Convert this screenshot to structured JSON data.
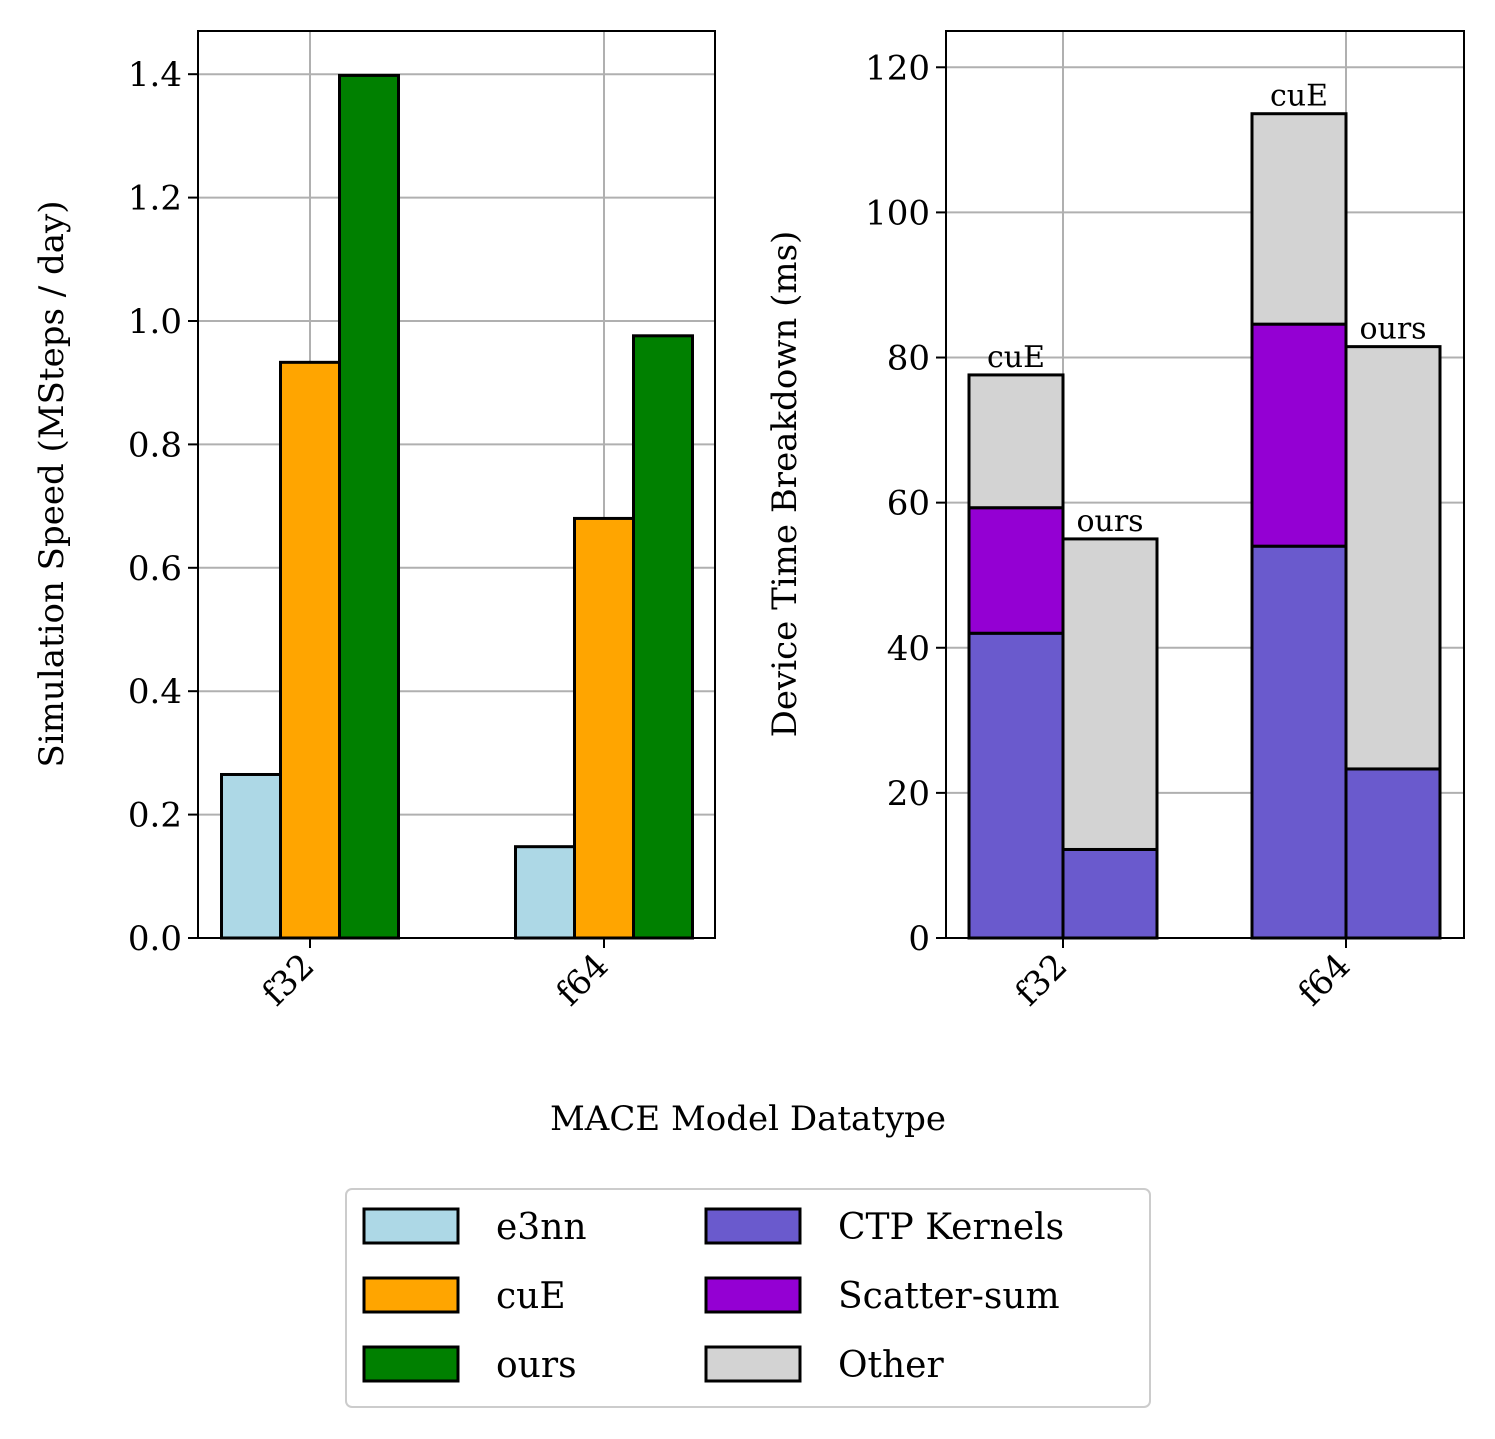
{
  "figure": {
    "shared_xlabel": "MACE Model Datatype"
  },
  "chart_data": [
    {
      "type": "bar",
      "categories": [
        "f32",
        "f64"
      ],
      "series": [
        {
          "name": "e3nn",
          "values": [
            0.265,
            0.148
          ],
          "color": "#add8e6"
        },
        {
          "name": "cuE",
          "values": [
            0.933,
            0.68
          ],
          "color": "#ffa500"
        },
        {
          "name": "ours",
          "values": [
            1.398,
            0.976
          ],
          "color": "#008000"
        }
      ],
      "ylabel": "Simulation Speed (MSteps / day)",
      "ylim": [
        0,
        1.47
      ],
      "yticks": [
        "0.0",
        "0.2",
        "0.4",
        "0.6",
        "0.8",
        "1.0",
        "1.2",
        "1.4"
      ],
      "grid": true
    },
    {
      "type": "bar",
      "stacked": true,
      "categories": [
        "f32",
        "f64"
      ],
      "groups": [
        "cuE",
        "ours"
      ],
      "components": [
        {
          "name": "CTP Kernels",
          "color": "#6a5acd",
          "cuE": [
            42,
            54
          ],
          "ours": [
            12.2,
            23.3
          ]
        },
        {
          "name": "Scatter-sum",
          "color": "#9400d3",
          "cuE": [
            17.3,
            30.6
          ],
          "ours": [
            0,
            0
          ]
        },
        {
          "name": "Other",
          "color": "#d3d3d3",
          "cuE": [
            18.3,
            29
          ],
          "ours": [
            42.8,
            58.2
          ]
        }
      ],
      "bar_labels": [
        "cuE",
        "ours",
        "cuE",
        "ours"
      ],
      "ylabel": "Device Time Breakdown (ms)",
      "ylim": [
        0,
        125
      ],
      "yticks": [
        "0",
        "20",
        "40",
        "60",
        "80",
        "100",
        "120"
      ],
      "grid": true
    }
  ],
  "legend": {
    "placement": "bottom-center",
    "entries": [
      {
        "label": "e3nn",
        "color": "#add8e6"
      },
      {
        "label": "cuE",
        "color": "#ffa500"
      },
      {
        "label": "ours",
        "color": "#008000"
      },
      {
        "label": "CTP Kernels",
        "color": "#6a5acd"
      },
      {
        "label": "Scatter-sum",
        "color": "#9400d3"
      },
      {
        "label": "Other",
        "color": "#d3d3d3"
      }
    ]
  }
}
